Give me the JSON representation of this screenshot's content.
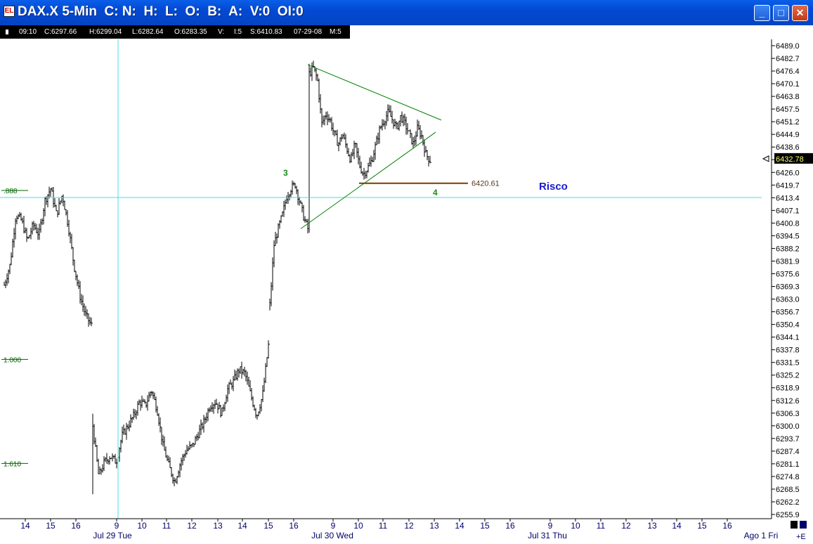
{
  "window": {
    "title": "DAX.X 5-Min  C: N:  H:  L:  O:  B:  A:  V:0  OI:0",
    "app_icon_label": "EL",
    "buttons": {
      "minimize": "_",
      "maximize": "□",
      "close": "✕"
    }
  },
  "data_bar": {
    "time": "09:10",
    "close": "C:6297.66",
    "high": "H:6299.04",
    "low": "L:6282.64",
    "open": "O:6283.35",
    "volume": "V:",
    "interval": "I:5",
    "s_value": "S:6410.83",
    "date": "07-29-08",
    "minutes": "M:5"
  },
  "colors": {
    "price_bars": "#000000",
    "triangle_lines": "#008000",
    "crosshair": "#44e0e0",
    "risk_line": "#7a3d00",
    "wave_labels": "#1a8a1a",
    "risco_text": "#1a1ad0",
    "fib_labels": "#006400"
  },
  "chart_data": {
    "type": "bar",
    "title": "DAX.X 5-Min",
    "y_axis": {
      "side": "right",
      "range": [
        6253.2,
        6491.4
      ],
      "tick_labels": [
        "6489.0",
        "6482.7",
        "6476.4",
        "6470.1",
        "6463.8",
        "6457.5",
        "6451.2",
        "6444.9",
        "6438.6",
        "6432.3",
        "6426.0",
        "6419.7",
        "6413.4",
        "6407.1",
        "6400.8",
        "6394.5",
        "6388.2",
        "6381.9",
        "6375.6",
        "6369.3",
        "6363.0",
        "6356.7",
        "6350.4",
        "6344.1",
        "6337.8",
        "6331.5",
        "6325.2",
        "6318.9",
        "6312.6",
        "6306.3",
        "6300.0",
        "6293.7",
        "6287.4",
        "6281.1",
        "6274.8",
        "6268.5",
        "6262.2",
        "6255.9"
      ],
      "last_price_label": "6432.78",
      "last_price": 6432.78
    },
    "x_axis": {
      "hour_labels": [
        "14",
        "15",
        "16",
        "9",
        "10",
        "11",
        "12",
        "13",
        "14",
        "15",
        "16",
        "9",
        "10",
        "11",
        "12",
        "13",
        "14",
        "15",
        "16",
        "9",
        "10",
        "11",
        "12",
        "13",
        "14",
        "15",
        "16"
      ],
      "hour_positions": [
        36,
        72,
        108,
        166,
        202,
        237,
        273,
        310,
        345,
        382,
        418,
        474,
        510,
        545,
        582,
        618,
        654,
        690,
        726,
        783,
        819,
        855,
        891,
        928,
        963,
        999,
        1035
      ],
      "day_labels": [
        "Jul 29 Tue",
        "Jul 30 Wed",
        "Jul 31 Thu",
        "Ago 1 Fri"
      ],
      "day_positions": [
        160,
        473,
        779,
        1083
      ],
      "right_edge_label": "+E"
    },
    "crosshair": {
      "price": 6413.5
    },
    "fib_levels": [
      {
        "label": ".888",
        "price": 6417.0
      },
      {
        "label": "1.000",
        "price": 6333.0
      },
      {
        "label": "1.610",
        "price": 6281.3
      }
    ],
    "risk_level": {
      "label": "6420.61",
      "price": 6420.61
    },
    "annotations": {
      "wave3": "3",
      "wave4": "4",
      "risco": "Risco"
    },
    "triangle": {
      "upper": {
        "from": [
          6479.5
        ],
        "to": [
          6452.0
        ]
      },
      "lower": {
        "from": [
          6398.0
        ],
        "to": [
          6446.0
        ]
      }
    },
    "segments": [
      {
        "x0": 6,
        "x1": 130,
        "points": [
          6370,
          6380,
          6405,
          6402,
          6392,
          6400,
          6395,
          6412,
          6418,
          6405,
          6415,
          6400,
          6380,
          6365,
          6355,
          6350
        ]
      },
      {
        "x0": 132,
        "x1": 382,
        "points": [
          6300,
          6275,
          6282,
          6285,
          6282,
          6295,
          6300,
          6305,
          6312,
          6310,
          6318,
          6308,
          6290,
          6280,
          6272,
          6282,
          6288,
          6290,
          6296,
          6302,
          6310,
          6312,
          6306,
          6318,
          6322,
          6328,
          6326,
          6315,
          6305,
          6315,
          6340
        ]
      },
      {
        "x0": 384,
        "x1": 438,
        "points": [
          6360,
          6390,
          6398,
          6405,
          6414,
          6418,
          6420,
          6412,
          6404,
          6398
        ]
      },
      {
        "x0": 440,
        "x1": 612,
        "points": [
          6475,
          6478,
          6472,
          6450,
          6455,
          6452,
          6445,
          6440,
          6445,
          6438,
          6432,
          6440,
          6430,
          6425,
          6428,
          6432,
          6440,
          6448,
          6452,
          6456,
          6452,
          6448,
          6454,
          6450,
          6445,
          6440,
          6448,
          6444,
          6435,
          6432
        ]
      }
    ]
  }
}
